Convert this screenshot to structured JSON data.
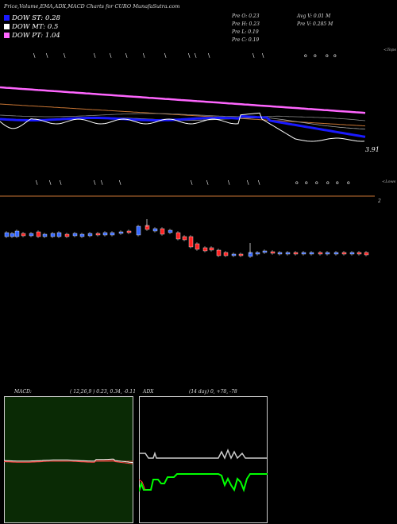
{
  "header": {
    "title": "Price,Volume,EMA,ADX,MACD Charts for CURO MunafaSutra.com"
  },
  "legend": [
    {
      "label": "DOW ST: 0.28",
      "color": "#1a1aff"
    },
    {
      "label": "DOW MT: 0.5",
      "color": "#ffffff"
    },
    {
      "label": "DOW PT: 1.04",
      "color": "#ff66ff"
    }
  ],
  "stats": {
    "prev_open": "Pre   O: 0.23",
    "prev_high": "Pre   H: 0.23",
    "prev_low": "Pre   L: 0.19",
    "prev_close": "Pre   C: 0.19",
    "avg_volume": "Avg V: 0.01 M",
    "prev_volume": "Pre   V: 0.285 M"
  },
  "price_panel": {
    "top_label": "<Tops",
    "bottom_label": "<Lows",
    "price_label": "3.91",
    "volume_label": "2",
    "colors": {
      "ema_short": "#1a1aff",
      "ema_mid": "#ffffff",
      "ema_long": "#ff66ff",
      "ema_orange": "#c87533",
      "up": "#3366ff",
      "down": "#ff2222"
    }
  },
  "macd_panel": {
    "label": "MACD:",
    "params": "( 12,26,9 ) 0.23, 0.34, -0.11",
    "bg": "#0a2a05"
  },
  "adx_panel": {
    "label": "ADX",
    "params": "(14  day) 0, +78, -78",
    "colors": {
      "adx": "#cccccc",
      "di_plus": "#00ff00",
      "di_minus": "#ff3333"
    }
  },
  "chart_data": [
    {
      "type": "candlestick",
      "title": "Price,Volume,EMA,ADX,MACD Charts for CURO",
      "series": [
        {
          "name": "DOW ST",
          "value": 0.28
        },
        {
          "name": "DOW MT",
          "value": 0.5
        },
        {
          "name": "DOW PT",
          "value": 1.04
        }
      ],
      "annotations": [
        "3.91",
        "2"
      ]
    },
    {
      "type": "line",
      "title": "MACD",
      "params": [
        12,
        26,
        9
      ],
      "values": {
        "macd": 0.23,
        "signal": 0.34,
        "histogram": -0.11
      }
    },
    {
      "type": "line",
      "title": "ADX",
      "period_days": 14,
      "values": {
        "adx": 0,
        "di_plus": 78,
        "di_minus": -78
      }
    }
  ]
}
